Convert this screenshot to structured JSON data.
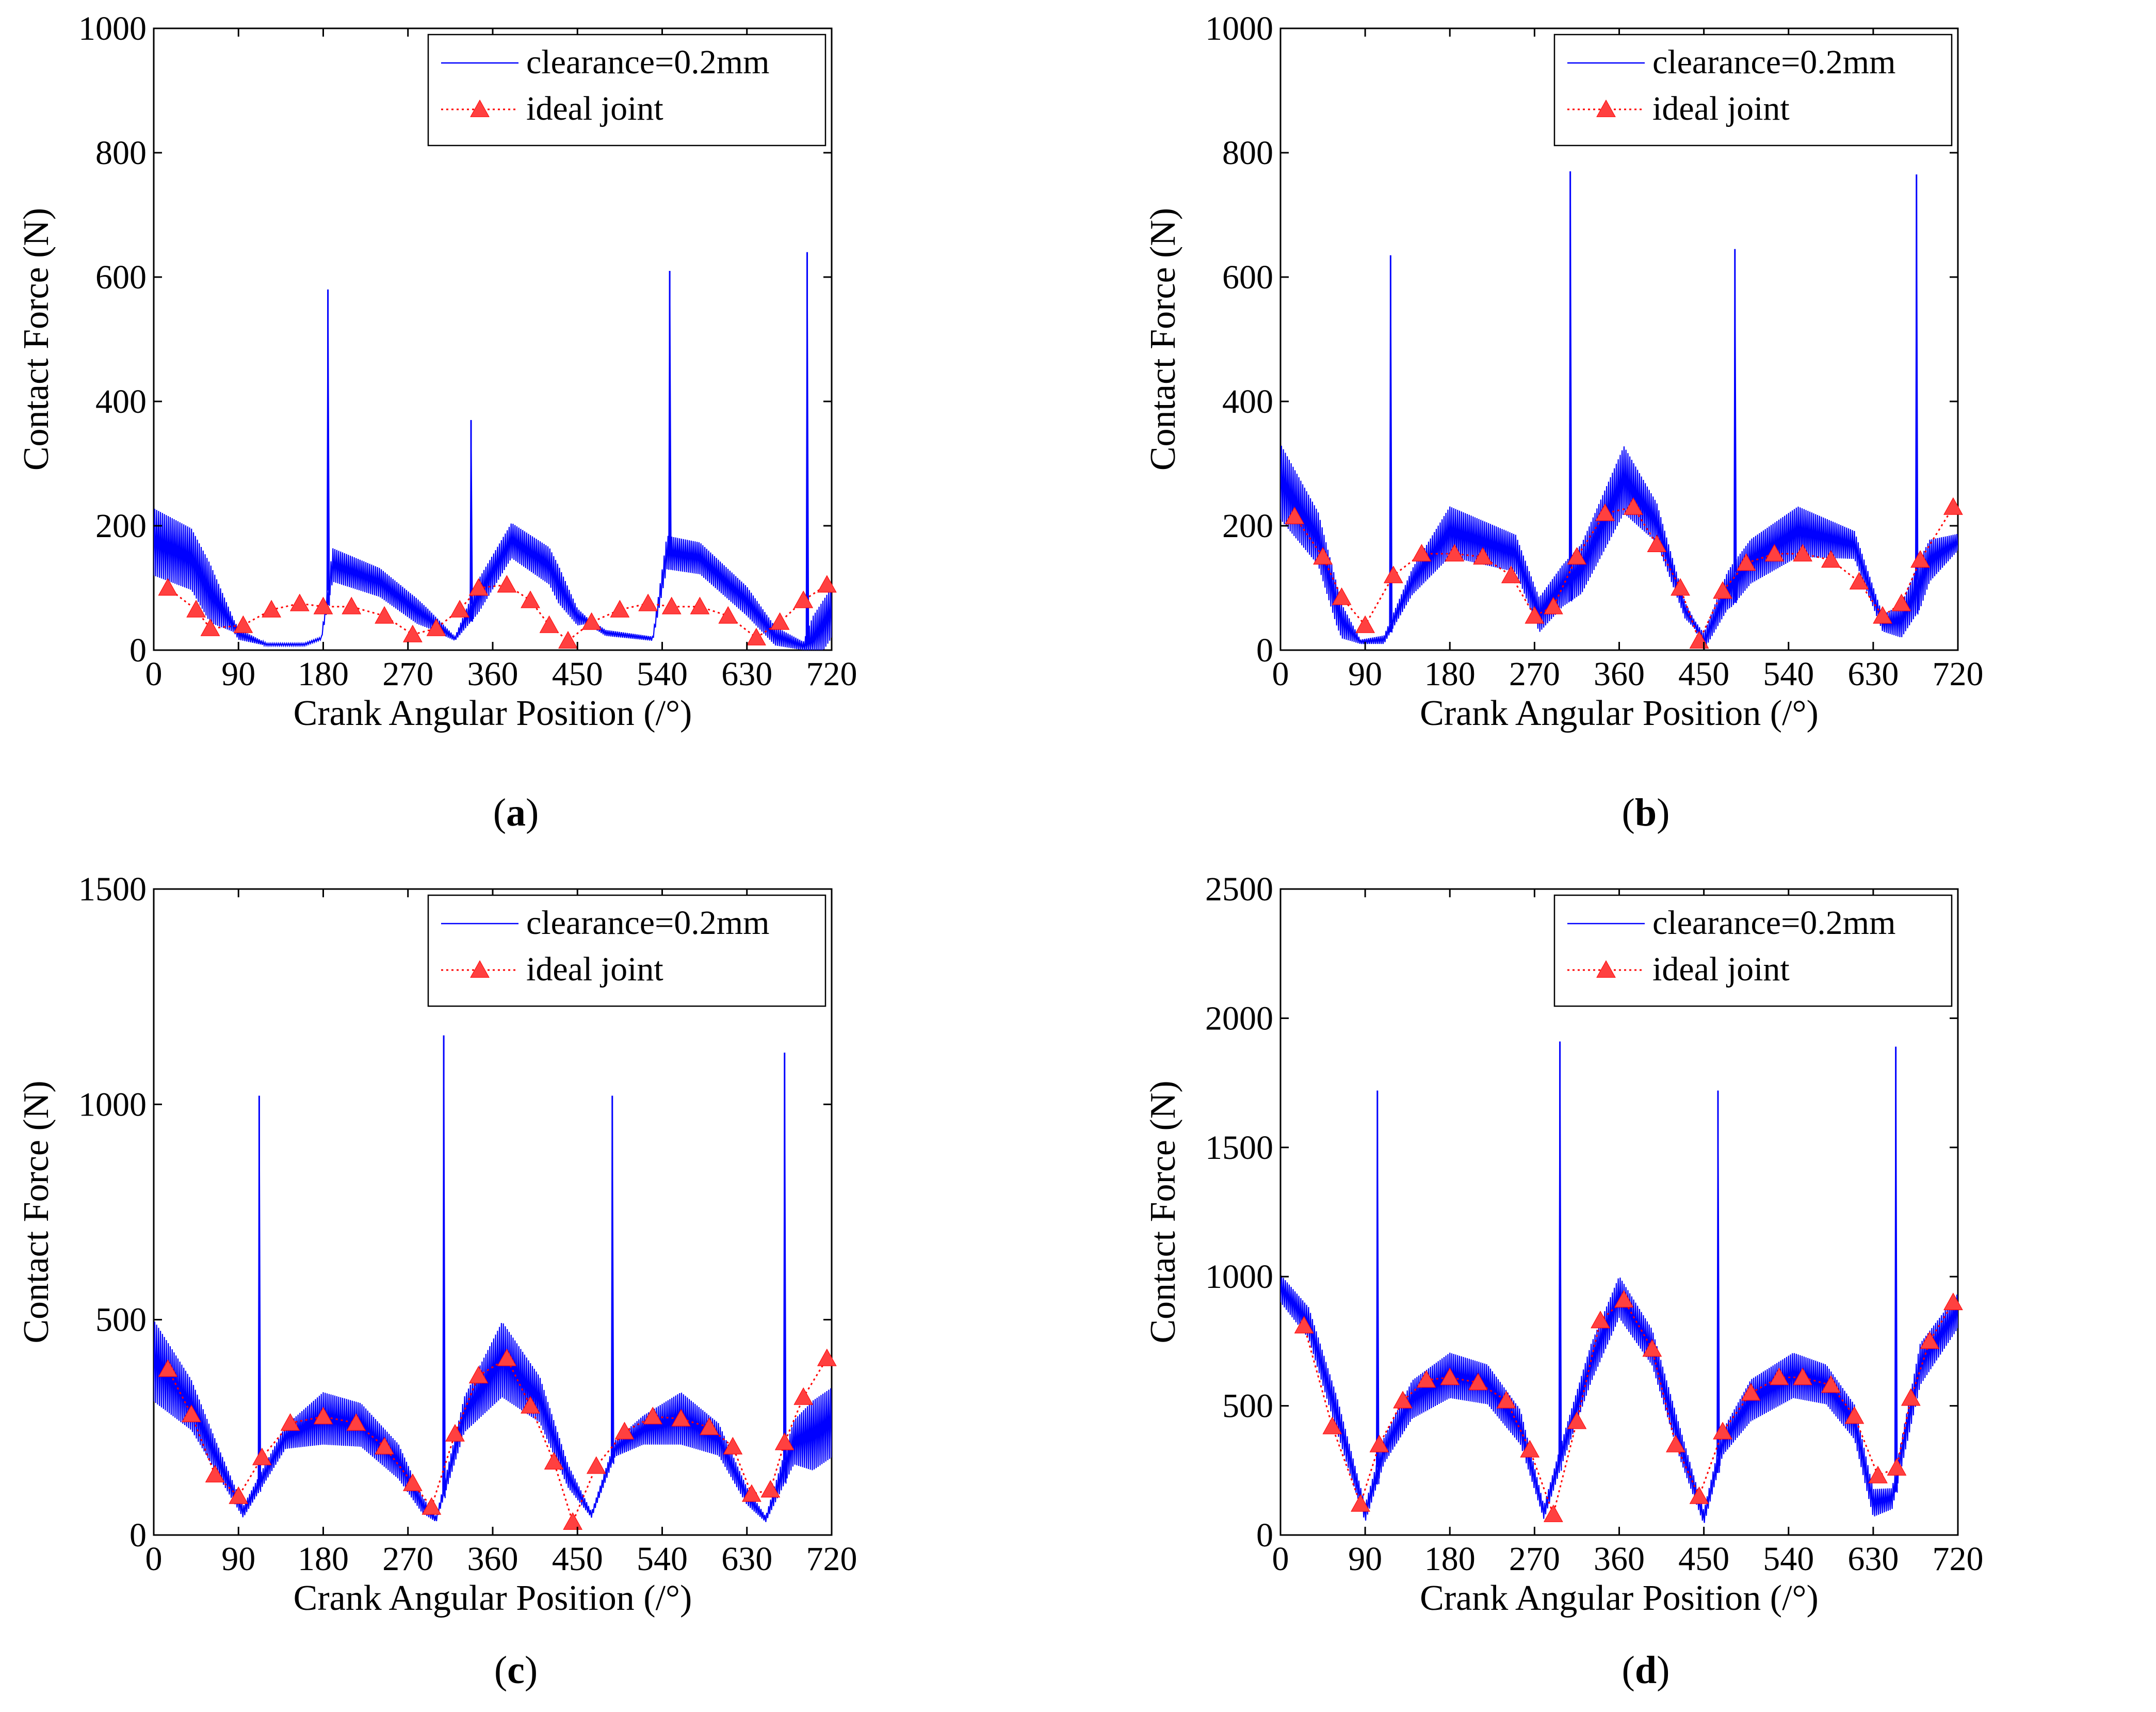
{
  "figure": {
    "captions": [
      "(a)",
      "(b)",
      "(c)",
      "(d)"
    ],
    "colors": {
      "clearance": "#0000ff",
      "ideal": "#ff0000",
      "marker": "#ff4040",
      "axis": "#000000"
    }
  },
  "chart_data": [
    {
      "id": "a",
      "type": "line",
      "caption": "(a)",
      "caption_letter": "a",
      "xlabel": "Crank Angular Position (/°)",
      "ylabel": "Contact Force (N)",
      "xlim": [
        0,
        720
      ],
      "ylim": [
        0,
        1000
      ],
      "xticks": [
        0,
        90,
        180,
        270,
        360,
        450,
        540,
        630,
        720
      ],
      "yticks": [
        0,
        200,
        400,
        600,
        800,
        1000
      ],
      "legend_position": "top-right",
      "legend": [
        "clearance=0.2mm",
        "ideal joint"
      ],
      "series": [
        {
          "name": "clearance=0.2mm",
          "style": "solid",
          "envelope": [
            [
              0,
              200
            ],
            [
              40,
              170
            ],
            [
              65,
              100
            ],
            [
              90,
              30
            ],
            [
              120,
              10
            ],
            [
              160,
              10
            ],
            [
              178,
              20
            ],
            [
              190,
              150
            ],
            [
              240,
              120
            ],
            [
              290,
              60
            ],
            [
              320,
              20
            ],
            [
              345,
              100
            ],
            [
              380,
              190
            ],
            [
              420,
              150
            ],
            [
              450,
              60
            ],
            [
              480,
              30
            ],
            [
              530,
              20
            ],
            [
              545,
              170
            ],
            [
              580,
              160
            ],
            [
              630,
              90
            ],
            [
              660,
              30
            ],
            [
              690,
              10
            ],
            [
              720,
              80
            ]
          ],
          "amplitude": [
            [
              0,
              80
            ],
            [
              60,
              70
            ],
            [
              85,
              15
            ],
            [
              120,
              3
            ],
            [
              178,
              3
            ],
            [
              190,
              40
            ],
            [
              280,
              30
            ],
            [
              320,
              5
            ],
            [
              345,
              40
            ],
            [
              430,
              45
            ],
            [
              460,
              8
            ],
            [
              530,
              5
            ],
            [
              545,
              40
            ],
            [
              630,
              35
            ],
            [
              690,
              10
            ],
            [
              700,
              60
            ],
            [
              720,
              60
            ]
          ],
          "spikes": [
            [
              185,
              580
            ],
            [
              337,
              370
            ],
            [
              548,
              610
            ],
            [
              694,
              640
            ]
          ]
        },
        {
          "name": "ideal joint",
          "style": "dotted",
          "marker": "triangle",
          "x": [
            15,
            45,
            60,
            95,
            125,
            155,
            180,
            210,
            245,
            275,
            300,
            325,
            345,
            375,
            400,
            420,
            440,
            465,
            495,
            525,
            550,
            580,
            610,
            640,
            665,
            690,
            715
          ],
          "y": [
            100,
            65,
            35,
            40,
            65,
            75,
            70,
            70,
            55,
            25,
            35,
            65,
            100,
            105,
            80,
            40,
            15,
            45,
            65,
            75,
            70,
            70,
            55,
            20,
            45,
            80,
            105
          ]
        }
      ]
    },
    {
      "id": "b",
      "type": "line",
      "caption": "(b)",
      "caption_letter": "b",
      "xlabel": "Crank Angular Position (/°)",
      "ylabel": "Contact Force (N)",
      "xlim": [
        0,
        720
      ],
      "ylim": [
        0,
        1000
      ],
      "xticks": [
        0,
        90,
        180,
        270,
        360,
        450,
        540,
        630,
        720
      ],
      "yticks": [
        0,
        200,
        400,
        600,
        800,
        1000
      ],
      "legend_position": "top-right",
      "legend": [
        "clearance=0.2mm",
        "ideal joint"
      ],
      "series": [
        {
          "name": "clearance=0.2mm",
          "style": "solid",
          "envelope": [
            [
              0,
              300
            ],
            [
              40,
              200
            ],
            [
              65,
              60
            ],
            [
              85,
              15
            ],
            [
              110,
              20
            ],
            [
              140,
              120
            ],
            [
              180,
              210
            ],
            [
              250,
              170
            ],
            [
              275,
              70
            ],
            [
              300,
              120
            ],
            [
              320,
              150
            ],
            [
              365,
              300
            ],
            [
              400,
              220
            ],
            [
              430,
              70
            ],
            [
              450,
              20
            ],
            [
              475,
              110
            ],
            [
              500,
              160
            ],
            [
              550,
              210
            ],
            [
              610,
              180
            ],
            [
              640,
              50
            ],
            [
              660,
              60
            ],
            [
              690,
              160
            ],
            [
              720,
              180
            ]
          ],
          "amplitude": [
            [
              0,
              90
            ],
            [
              60,
              50
            ],
            [
              85,
              5
            ],
            [
              110,
              10
            ],
            [
              180,
              60
            ],
            [
              270,
              40
            ],
            [
              300,
              50
            ],
            [
              365,
              80
            ],
            [
              440,
              10
            ],
            [
              480,
              50
            ],
            [
              550,
              60
            ],
            [
              640,
              20
            ],
            [
              680,
              60
            ],
            [
              720,
              20
            ]
          ],
          "spikes": [
            [
              117,
              635
            ],
            [
              308,
              770
            ],
            [
              483,
              645
            ],
            [
              676,
              765
            ]
          ]
        },
        {
          "name": "ideal joint",
          "style": "dotted",
          "marker": "triangle",
          "x": [
            15,
            45,
            65,
            90,
            120,
            150,
            185,
            215,
            245,
            270,
            290,
            315,
            345,
            375,
            400,
            425,
            445,
            470,
            495,
            525,
            555,
            585,
            615,
            640,
            660,
            680,
            715
          ],
          "y": [
            215,
            150,
            85,
            40,
            120,
            155,
            155,
            150,
            120,
            55,
            70,
            150,
            220,
            230,
            170,
            100,
            15,
            95,
            140,
            155,
            155,
            145,
            110,
            55,
            75,
            145,
            230
          ]
        }
      ]
    },
    {
      "id": "c",
      "type": "line",
      "caption": "(c)",
      "caption_letter": "c",
      "xlabel": "Crank Angular Position (/°)",
      "ylabel": "Contact Force (N)",
      "xlim": [
        0,
        720
      ],
      "ylim": [
        0,
        1500
      ],
      "xticks": [
        0,
        90,
        180,
        270,
        360,
        450,
        540,
        630,
        720
      ],
      "yticks": [
        0,
        500,
        1000,
        1500
      ],
      "legend_position": "top-right",
      "legend": [
        "clearance=0.2mm",
        "ideal joint"
      ],
      "series": [
        {
          "name": "clearance=0.2mm",
          "style": "solid",
          "envelope": [
            [
              0,
              450
            ],
            [
              40,
              330
            ],
            [
              70,
              180
            ],
            [
              95,
              60
            ],
            [
              115,
              140
            ],
            [
              140,
              240
            ],
            [
              180,
              300
            ],
            [
              220,
              280
            ],
            [
              260,
              190
            ],
            [
              285,
              80
            ],
            [
              300,
              40
            ],
            [
              330,
              300
            ],
            [
              370,
              450
            ],
            [
              410,
              340
            ],
            [
              440,
              150
            ],
            [
              465,
              50
            ],
            [
              490,
              210
            ],
            [
              520,
              260
            ],
            [
              560,
              300
            ],
            [
              600,
              240
            ],
            [
              630,
              100
            ],
            [
              650,
              40
            ],
            [
              680,
              240
            ],
            [
              720,
              300
            ]
          ],
          "amplitude": [
            [
              0,
              140
            ],
            [
              60,
              60
            ],
            [
              95,
              20
            ],
            [
              140,
              40
            ],
            [
              180,
              90
            ],
            [
              260,
              60
            ],
            [
              300,
              10
            ],
            [
              370,
              130
            ],
            [
              440,
              40
            ],
            [
              465,
              10
            ],
            [
              520,
              50
            ],
            [
              560,
              90
            ],
            [
              630,
              30
            ],
            [
              650,
              10
            ],
            [
              700,
              120
            ],
            [
              720,
              120
            ]
          ],
          "spikes": [
            [
              112,
              1020
            ],
            [
              308,
              1160
            ],
            [
              487,
              1020
            ],
            [
              670,
              1120
            ]
          ]
        },
        {
          "name": "ideal joint",
          "style": "dotted",
          "marker": "triangle",
          "x": [
            15,
            40,
            65,
            90,
            115,
            145,
            180,
            215,
            245,
            275,
            295,
            320,
            345,
            375,
            400,
            425,
            445,
            470,
            500,
            530,
            560,
            590,
            615,
            635,
            655,
            670,
            690,
            715
          ],
          "y": [
            385,
            280,
            140,
            90,
            180,
            260,
            275,
            260,
            205,
            120,
            65,
            235,
            370,
            410,
            300,
            170,
            30,
            160,
            240,
            275,
            270,
            250,
            205,
            95,
            105,
            215,
            320,
            410
          ]
        }
      ]
    },
    {
      "id": "d",
      "type": "line",
      "caption": "(d)",
      "caption_letter": "d",
      "xlabel": "Crank Angular Position (/°)",
      "ylabel": "Contact Force (N)",
      "xlim": [
        0,
        720
      ],
      "ylim": [
        0,
        2500
      ],
      "xticks": [
        0,
        90,
        180,
        270,
        360,
        450,
        540,
        630,
        720
      ],
      "yticks": [
        0,
        500,
        1000,
        1500,
        2000,
        2500
      ],
      "legend_position": "top-right",
      "legend": [
        "clearance=0.2mm",
        "ideal joint"
      ],
      "series": [
        {
          "name": "clearance=0.2mm",
          "style": "solid",
          "envelope": [
            [
              0,
              980
            ],
            [
              30,
              850
            ],
            [
              60,
              500
            ],
            [
              90,
              100
            ],
            [
              110,
              350
            ],
            [
              140,
              560
            ],
            [
              180,
              660
            ],
            [
              220,
              620
            ],
            [
              255,
              450
            ],
            [
              280,
              100
            ],
            [
              300,
              350
            ],
            [
              330,
              700
            ],
            [
              360,
              960
            ],
            [
              395,
              760
            ],
            [
              425,
              380
            ],
            [
              450,
              80
            ],
            [
              470,
              380
            ],
            [
              500,
              560
            ],
            [
              545,
              660
            ],
            [
              580,
              620
            ],
            [
              610,
              470
            ],
            [
              630,
              150
            ],
            [
              650,
              160
            ],
            [
              680,
              700
            ],
            [
              720,
              900
            ]
          ],
          "amplitude": [
            [
              0,
              80
            ],
            [
              60,
              100
            ],
            [
              90,
              50
            ],
            [
              140,
              110
            ],
            [
              180,
              130
            ],
            [
              255,
              100
            ],
            [
              280,
              40
            ],
            [
              330,
              110
            ],
            [
              360,
              120
            ],
            [
              425,
              90
            ],
            [
              450,
              40
            ],
            [
              500,
              120
            ],
            [
              545,
              130
            ],
            [
              610,
              100
            ],
            [
              650,
              60
            ],
            [
              680,
              120
            ],
            [
              720,
              100
            ]
          ],
          "spikes": [
            [
              103,
              1720
            ],
            [
              297,
              1910
            ],
            [
              465,
              1720
            ],
            [
              654,
              1890
            ]
          ]
        },
        {
          "name": "ideal joint",
          "style": "dotted",
          "marker": "triangle",
          "x": [
            25,
            55,
            85,
            105,
            130,
            155,
            180,
            210,
            240,
            265,
            290,
            315,
            340,
            365,
            395,
            420,
            445,
            470,
            500,
            530,
            555,
            585,
            610,
            635,
            655,
            670,
            690,
            715
          ],
          "y": [
            810,
            420,
            120,
            350,
            520,
            600,
            610,
            590,
            520,
            330,
            80,
            440,
            830,
            910,
            720,
            350,
            150,
            400,
            550,
            610,
            610,
            580,
            460,
            230,
            260,
            530,
            750,
            900
          ]
        }
      ]
    }
  ]
}
